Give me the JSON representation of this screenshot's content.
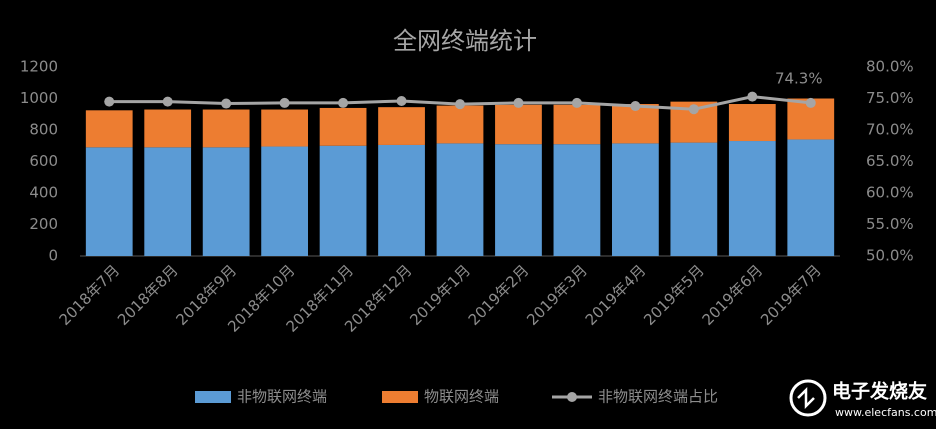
{
  "chart_data": {
    "type": "bar-line",
    "title": "全网终端统计",
    "categories": [
      "2018年7月",
      "2018年8月",
      "2018年9月",
      "2018年10月",
      "2018年11月",
      "2018年12月",
      "2019年1月",
      "2019年2月",
      "2019年3月",
      "2019年4月",
      "2019年5月",
      "2019年6月",
      "2019年7月"
    ],
    "series": [
      {
        "name": "非物联网终端",
        "type": "bar",
        "color": "#5b9bd5",
        "values": [
          690,
          690,
          690,
          695,
          700,
          705,
          715,
          710,
          710,
          715,
          720,
          730,
          740
        ]
      },
      {
        "name": "物联网终端",
        "type": "bar",
        "color": "#ed7d31",
        "values": [
          235,
          240,
          240,
          235,
          240,
          240,
          240,
          250,
          250,
          250,
          260,
          235,
          260
        ]
      },
      {
        "name": "非物联网终端占比",
        "type": "line",
        "axis": "y2",
        "color": "#a5a5a5",
        "values": [
          74.5,
          74.5,
          74.2,
          74.3,
          74.3,
          74.6,
          74.1,
          74.3,
          74.3,
          73.8,
          73.3,
          75.3,
          74.3
        ],
        "value_labels": [
          null,
          null,
          null,
          null,
          null,
          null,
          null,
          null,
          null,
          null,
          null,
          null,
          "74.3%"
        ]
      }
    ],
    "ylim": [
      0,
      1200
    ],
    "yticks": [
      0,
      200,
      400,
      600,
      800,
      1000,
      1200
    ],
    "y2lim": [
      50,
      80
    ],
    "y2ticks": [
      {
        "value": 50,
        "label": "50.0%"
      },
      {
        "value": 55,
        "label": "55.0%"
      },
      {
        "value": 60,
        "label": "60.0%"
      },
      {
        "value": 65,
        "label": "65.0%"
      },
      {
        "value": 70,
        "label": "70.0%"
      },
      {
        "value": 75,
        "label": "75.0%"
      },
      {
        "value": 80,
        "label": "80.0%"
      }
    ],
    "stacked": true,
    "grid": false,
    "legend": "bottom",
    "watermark": [
      "电子发烧友",
      "www.elecfans.com"
    ]
  }
}
